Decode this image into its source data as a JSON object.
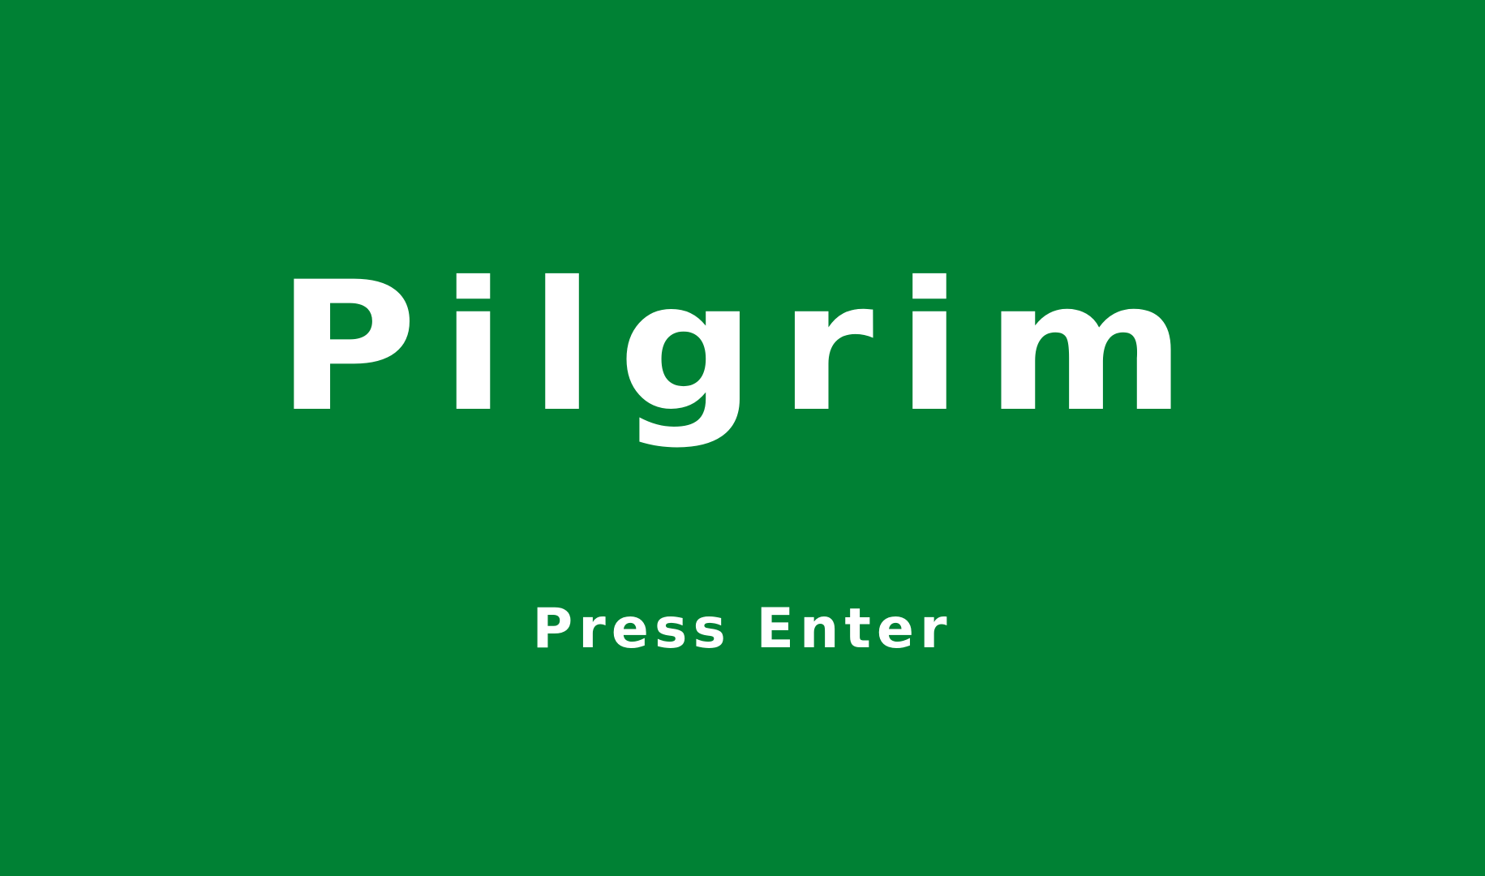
{
  "game": {
    "title": "Pilgrim",
    "prompt": "Press Enter"
  },
  "colors": {
    "background": "#008134",
    "text": "#ffffff"
  }
}
